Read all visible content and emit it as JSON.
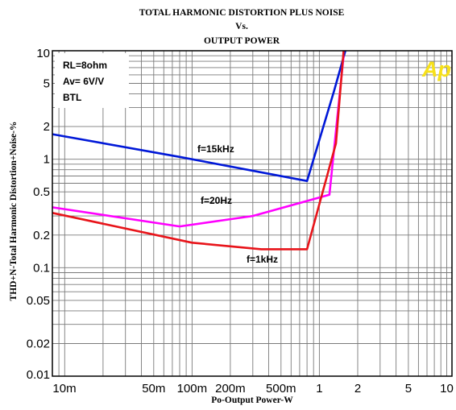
{
  "chart_data": {
    "type": "line",
    "title_lines": [
      "TOTAL HARMONIC DISTORTION PLUS NOISE",
      "Vs.",
      "OUTPUT POWER"
    ],
    "xlabel": "Po-Output Power-W",
    "ylabel": "THD+N-Total Harmonic Distortion+Noise-%",
    "x_scale": "log",
    "y_scale": "log",
    "xlim": [
      0.008,
      11
    ],
    "ylim": [
      0.01,
      10
    ],
    "grid": true,
    "x_ticks": [
      {
        "value": 0.01,
        "label": "10m"
      },
      {
        "value": 0.05,
        "label": "50m"
      },
      {
        "value": 0.1,
        "label": "100m"
      },
      {
        "value": 0.2,
        "label": "200m"
      },
      {
        "value": 0.5,
        "label": "500m"
      },
      {
        "value": 1,
        "label": "1"
      },
      {
        "value": 2,
        "label": "2"
      },
      {
        "value": 5,
        "label": "5"
      },
      {
        "value": 10,
        "label": "10"
      }
    ],
    "y_ticks": [
      {
        "value": 10,
        "label": "10"
      },
      {
        "value": 5,
        "label": "5"
      },
      {
        "value": 2,
        "label": "2"
      },
      {
        "value": 1,
        "label": "1"
      },
      {
        "value": 0.5,
        "label": "0.5"
      },
      {
        "value": 0.2,
        "label": "0.2"
      },
      {
        "value": 0.1,
        "label": "0.1"
      },
      {
        "value": 0.05,
        "label": "0.05"
      },
      {
        "value": 0.02,
        "label": "0.02"
      },
      {
        "value": 0.01,
        "label": "0.01"
      }
    ],
    "conditions": [
      "RL=8ohm",
      "Av= 6V/V",
      "BTL"
    ],
    "series": [
      {
        "name": "f=15kHz",
        "color": "#0018d8",
        "x": [
          0.008,
          0.08,
          0.8,
          1.3,
          1.6
        ],
        "y": [
          1.7,
          1.05,
          0.63,
          4.2,
          10
        ]
      },
      {
        "name": "f=20Hz",
        "color": "#ff00ff",
        "x": [
          0.008,
          0.08,
          0.3,
          1.2,
          1.55
        ],
        "y": [
          0.36,
          0.24,
          0.3,
          0.47,
          9.0
        ]
      },
      {
        "name": "f=1kHz",
        "color": "#e8141a",
        "x": [
          0.008,
          0.1,
          0.35,
          0.8,
          1.35,
          1.55
        ],
        "y": [
          0.32,
          0.17,
          0.148,
          0.148,
          1.4,
          10
        ]
      }
    ],
    "logo_text": "Ap"
  }
}
